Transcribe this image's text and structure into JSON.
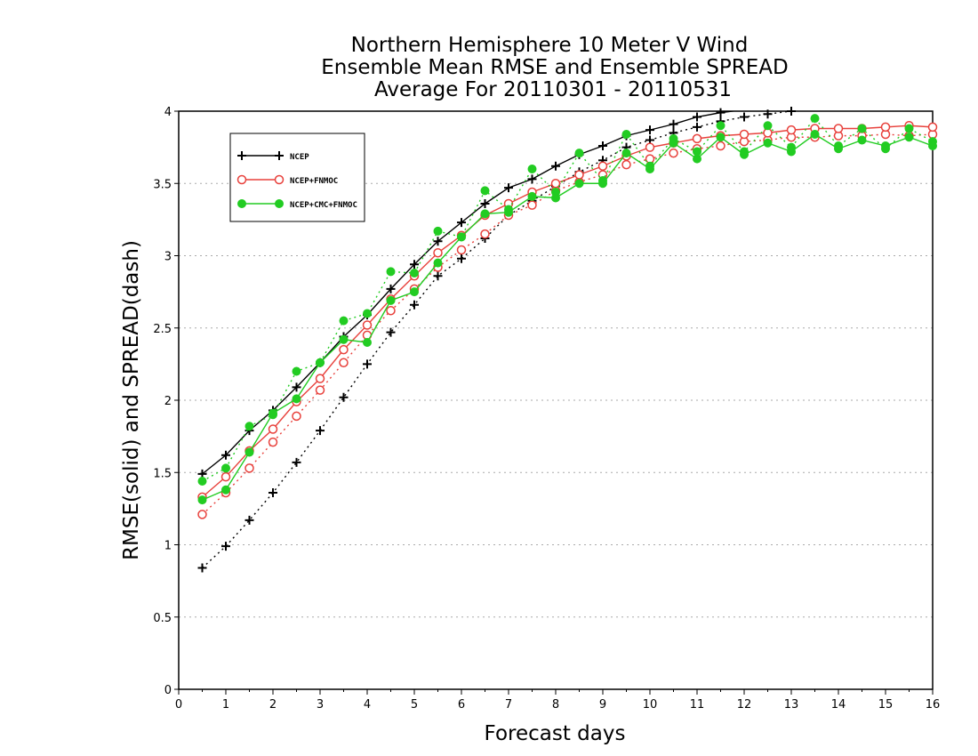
{
  "chart_data": {
    "type": "line",
    "title": [
      "Northern Hemisphere 10 Meter V Wind",
      "Ensemble Mean RMSE and Ensemble SPREAD",
      "Average For 20110301 - 20110531"
    ],
    "xlabel": "Forecast days",
    "ylabel": "RMSE(solid) and SPREAD(dash)",
    "xlim": [
      0,
      16
    ],
    "ylim": [
      0,
      4
    ],
    "xticks": [
      "0",
      "1",
      "2",
      "3",
      "4",
      "5",
      "6",
      "7",
      "8",
      "9",
      "10",
      "11",
      "12",
      "13",
      "14",
      "15",
      "16"
    ],
    "yticks": [
      "0",
      "0.5",
      "1",
      "1.5",
      "2",
      "2.5",
      "3",
      "3.5",
      "4"
    ],
    "grid": true,
    "legend_position": "top-left",
    "x": [
      0.5,
      1,
      1.5,
      2,
      2.5,
      3,
      3.5,
      4,
      4.5,
      5,
      5.5,
      6,
      6.5,
      7,
      7.5,
      8,
      8.5,
      9,
      9.5,
      10,
      10.5,
      11,
      11.5,
      12,
      12.5,
      13,
      13.5,
      14,
      14.5,
      15,
      15.5,
      16
    ],
    "series": [
      {
        "name": "NCEP",
        "color": "#000000",
        "marker": "plus",
        "rmse": [
          1.49,
          1.62,
          1.79,
          1.93,
          2.09,
          2.26,
          2.44,
          2.59,
          2.77,
          2.94,
          3.1,
          3.23,
          3.36,
          3.47,
          3.53,
          3.62,
          3.7,
          3.76,
          3.83,
          3.87,
          3.91,
          3.96,
          3.99,
          4.01,
          4.02,
          4.03,
          4.04,
          4.05,
          4.06,
          4.06,
          4.07,
          4.07
        ],
        "spread": [
          0.84,
          0.99,
          1.17,
          1.36,
          1.57,
          1.79,
          2.02,
          2.25,
          2.47,
          2.66,
          2.86,
          2.98,
          3.12,
          3.28,
          3.38,
          3.48,
          3.58,
          3.66,
          3.75,
          3.8,
          3.85,
          3.89,
          3.93,
          3.96,
          3.98,
          4.0,
          4.02,
          4.03,
          4.04,
          4.05,
          4.06,
          4.06
        ]
      },
      {
        "name": "NCEP+FNMOC",
        "color": "#e8413c",
        "marker": "circle",
        "rmse": [
          1.33,
          1.47,
          1.65,
          1.8,
          1.99,
          2.15,
          2.35,
          2.52,
          2.7,
          2.86,
          3.02,
          3.14,
          3.28,
          3.36,
          3.44,
          3.5,
          3.56,
          3.62,
          3.69,
          3.75,
          3.78,
          3.81,
          3.83,
          3.84,
          3.85,
          3.87,
          3.88,
          3.88,
          3.88,
          3.89,
          3.9,
          3.89
        ],
        "spread": [
          1.21,
          1.36,
          1.53,
          1.71,
          1.89,
          2.07,
          2.26,
          2.45,
          2.62,
          2.77,
          2.92,
          3.04,
          3.15,
          3.28,
          3.35,
          3.45,
          3.51,
          3.56,
          3.63,
          3.67,
          3.71,
          3.74,
          3.76,
          3.79,
          3.8,
          3.82,
          3.82,
          3.83,
          3.83,
          3.84,
          3.83,
          3.84
        ]
      },
      {
        "name": "NCEP+CMC+FNMOC",
        "color": "#22cc22",
        "marker": "filled-circle",
        "rmse": [
          1.31,
          1.38,
          1.64,
          1.91,
          2.01,
          2.26,
          2.42,
          2.4,
          2.69,
          2.75,
          2.95,
          3.13,
          3.29,
          3.3,
          3.41,
          3.4,
          3.5,
          3.5,
          3.71,
          3.6,
          3.78,
          3.67,
          3.82,
          3.7,
          3.78,
          3.72,
          3.84,
          3.74,
          3.8,
          3.76,
          3.82,
          3.76
        ],
        "spread": [
          1.44,
          1.53,
          1.82,
          1.9,
          2.2,
          2.26,
          2.55,
          2.6,
          2.89,
          2.88,
          3.17,
          3.13,
          3.45,
          3.32,
          3.6,
          3.44,
          3.71,
          3.52,
          3.84,
          3.62,
          3.81,
          3.72,
          3.9,
          3.72,
          3.9,
          3.75,
          3.95,
          3.76,
          3.88,
          3.74,
          3.88,
          3.79
        ]
      }
    ]
  }
}
